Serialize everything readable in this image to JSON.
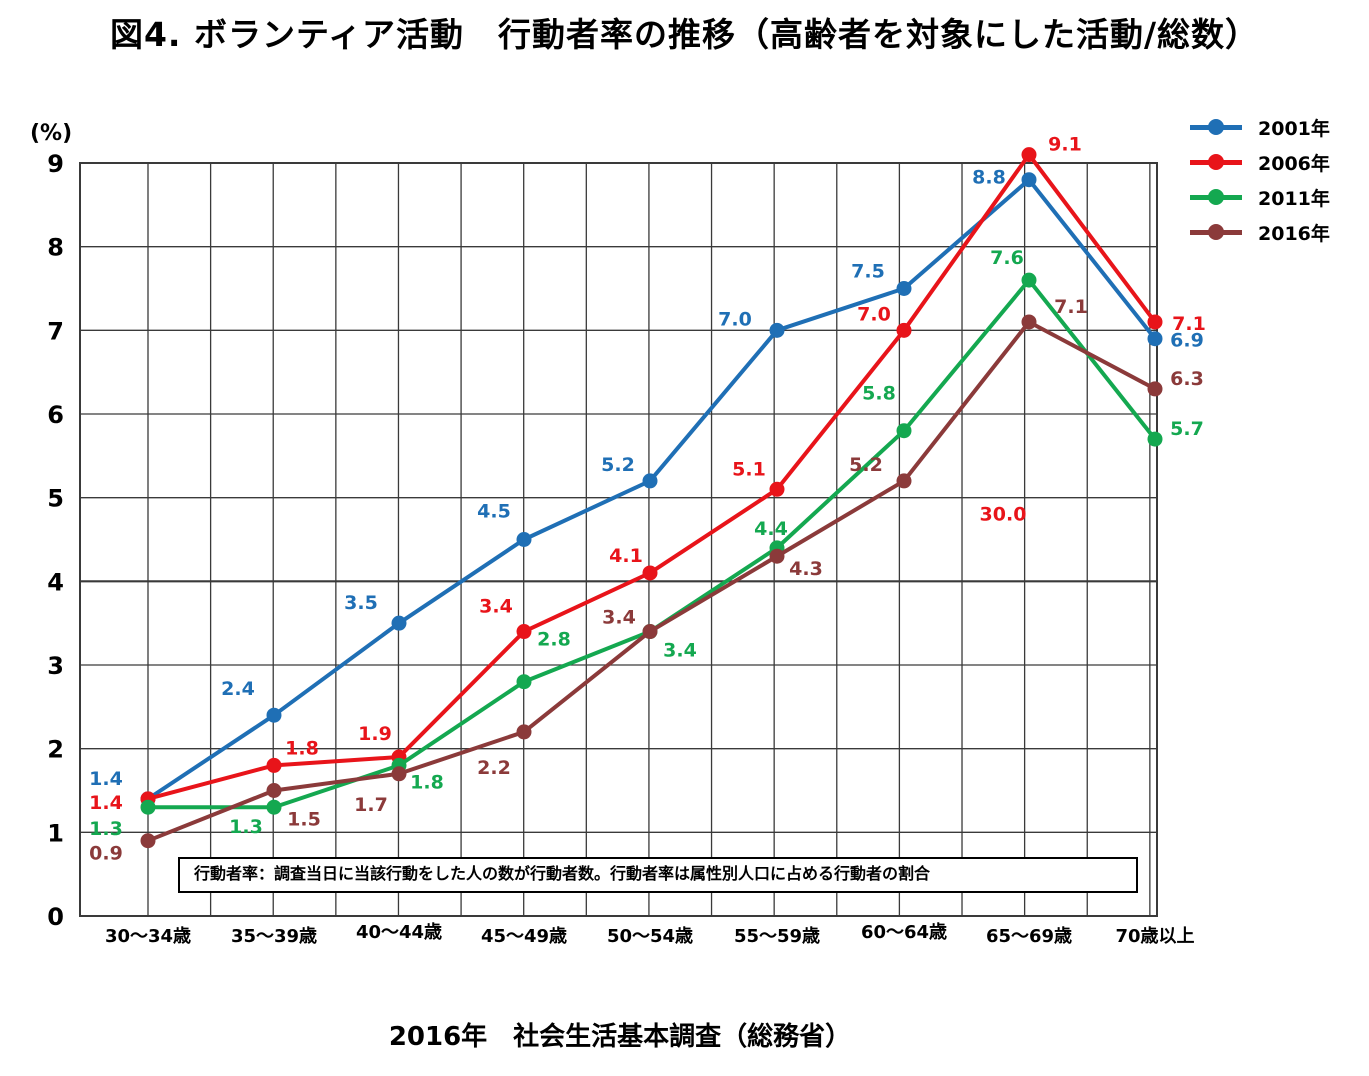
{
  "title": "図4.  ボランティア活動　行動者率の推移（高齢者を対象にした活動/総数）",
  "source": "2016年　社会生活基本調査（総務省）",
  "note": "行動者率：調査当日に当該行動をした人の数が行動者数。行動者率は属性別人口に占める行動者の割合",
  "chart_data": {
    "type": "line",
    "ylabel": "(%)",
    "ylim": [
      0,
      9
    ],
    "yticks": [
      "0",
      "1",
      "2",
      "3",
      "4",
      "5",
      "6",
      "7",
      "8",
      "9"
    ],
    "grid": true,
    "legend_position": "top-right",
    "categories": [
      "30～34歳",
      "35～39歳",
      "40～44歳",
      "45～49歳",
      "50～54歳",
      "55～59歳",
      "60～64歳",
      "65～69歳",
      "70歳以上"
    ],
    "series": [
      {
        "name": "2001年",
        "color": "#1f6fb5",
        "values": [
          1.4,
          2.4,
          3.5,
          4.5,
          5.2,
          7.0,
          7.5,
          8.8,
          6.9
        ],
        "labels": [
          "1.4",
          "2.4",
          "3.5",
          "4.5",
          "5.2",
          "7.0",
          "7.5",
          "8.8",
          "6.9"
        ]
      },
      {
        "name": "2006年",
        "color": "#e8141a",
        "values": [
          1.4,
          1.8,
          1.9,
          3.4,
          4.1,
          5.1,
          7.0,
          9.1,
          7.1
        ],
        "labels": [
          "1.4",
          "1.8",
          "1.9",
          "3.4",
          "4.1",
          "5.1",
          "7.0",
          "9.1",
          "7.1"
        ]
      },
      {
        "name": "2011年",
        "color": "#14a850",
        "values": [
          1.3,
          1.3,
          1.8,
          2.8,
          3.4,
          4.4,
          5.8,
          7.6,
          5.7
        ],
        "labels": [
          "1.3",
          "1.3",
          "1.8",
          "2.8",
          "3.4",
          "4.4",
          "5.8",
          "7.6",
          "5.7"
        ]
      },
      {
        "name": "2016年",
        "color": "#8b3a3a",
        "values": [
          0.9,
          1.5,
          1.7,
          2.2,
          3.4,
          4.3,
          5.2,
          7.1,
          6.3
        ],
        "labels": [
          "0.9",
          "1.5",
          "1.7",
          "2.2",
          "3.4",
          "4.3",
          "5.2",
          "7.1",
          "6.3"
        ]
      }
    ],
    "annotations": [
      {
        "text": "30.0",
        "x": "65～69歳",
        "y": 5.0,
        "color": "#e8141a"
      }
    ]
  }
}
